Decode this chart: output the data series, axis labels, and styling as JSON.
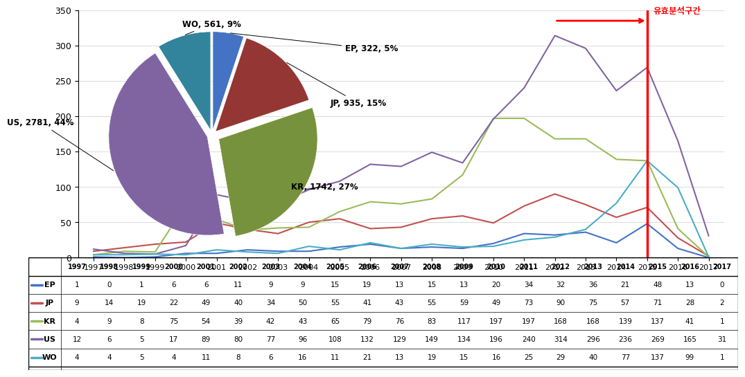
{
  "years": [
    1997,
    1998,
    1999,
    2000,
    2001,
    2002,
    2003,
    2004,
    2005,
    2006,
    2007,
    2008,
    2009,
    2010,
    2011,
    2012,
    2013,
    2014,
    2015,
    2016,
    2017
  ],
  "EP": [
    1,
    0,
    1,
    6,
    6,
    11,
    9,
    9,
    15,
    19,
    13,
    15,
    13,
    20,
    34,
    32,
    36,
    21,
    48,
    13,
    0
  ],
  "JP": [
    9,
    14,
    19,
    22,
    49,
    40,
    34,
    50,
    55,
    41,
    43,
    55,
    59,
    49,
    73,
    90,
    75,
    57,
    71,
    28,
    2
  ],
  "KR": [
    4,
    9,
    8,
    75,
    54,
    39,
    42,
    43,
    65,
    79,
    76,
    83,
    117,
    197,
    197,
    168,
    168,
    139,
    137,
    41,
    1
  ],
  "US": [
    12,
    6,
    5,
    17,
    89,
    80,
    77,
    96,
    108,
    132,
    129,
    149,
    134,
    196,
    240,
    314,
    296,
    236,
    269,
    165,
    31
  ],
  "WO": [
    4,
    4,
    5,
    4,
    11,
    8,
    6,
    16,
    11,
    21,
    13,
    19,
    15,
    16,
    25,
    29,
    40,
    77,
    137,
    99,
    1
  ],
  "pie_values": [
    322,
    935,
    1742,
    2781,
    561
  ],
  "pie_colors": [
    "#4472C4",
    "#943634",
    "#76923C",
    "#8064A2",
    "#31849B"
  ],
  "pie_colors_dark": [
    "#2F4F8F",
    "#632423",
    "#4F6128",
    "#604070",
    "#215870"
  ],
  "pie_explode": [
    0.05,
    0.05,
    0.08,
    0.05,
    0.05
  ],
  "pie_labels": [
    "EP, 322, 5%",
    "JP, 935, 15%",
    "KR, 1742, 27%",
    "US, 2781, 44%",
    "WO, 561, 9%"
  ],
  "line_colors": {
    "EP": "#4472C4",
    "JP": "#C0504D",
    "KR": "#9BBB59",
    "US": "#8064A2",
    "WO": "#4BACC6"
  },
  "ylim": [
    0,
    350
  ],
  "yticks": [
    0,
    50,
    100,
    150,
    200,
    250,
    300,
    350
  ],
  "annotation_text": "유효분석구간",
  "annotation_color": "#FF0000",
  "vertical_line_x": 2015,
  "bg_color": "#FFFFFF"
}
